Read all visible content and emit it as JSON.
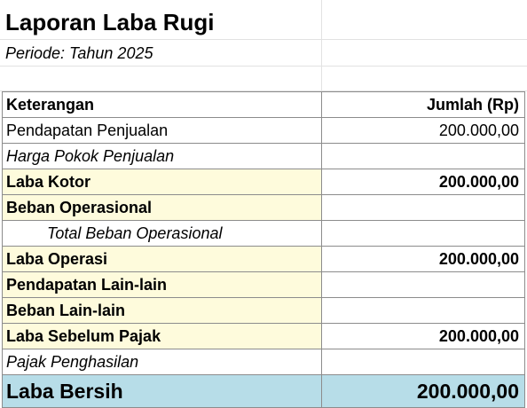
{
  "report": {
    "title": "Laporan Laba Rugi",
    "period": "Periode: Tahun 2025",
    "headers": {
      "description": "Keterangan",
      "amount": "Jumlah (Rp)"
    },
    "rows": [
      {
        "label": "Pendapatan Penjualan",
        "amount": "200.000,00"
      },
      {
        "label": "Harga Pokok Penjualan",
        "amount": ""
      },
      {
        "label": "Laba Kotor",
        "amount": "200.000,00"
      },
      {
        "label": "Beban Operasional",
        "amount": ""
      },
      {
        "label": "Total Beban Operasional",
        "amount": ""
      },
      {
        "label": "Laba Operasi",
        "amount": "200.000,00"
      },
      {
        "label": "Pendapatan Lain-lain",
        "amount": ""
      },
      {
        "label": "Beban Lain-lain",
        "amount": ""
      },
      {
        "label": "Laba Sebelum Pajak",
        "amount": "200.000,00"
      },
      {
        "label": "Pajak Penghasilan",
        "amount": ""
      }
    ],
    "total": {
      "label": "Laba Bersih",
      "amount": "200.000,00"
    }
  },
  "colors": {
    "highlight_fill": "#fefbdc",
    "total_fill": "#b7dde8",
    "border": "#8c8c8c"
  }
}
